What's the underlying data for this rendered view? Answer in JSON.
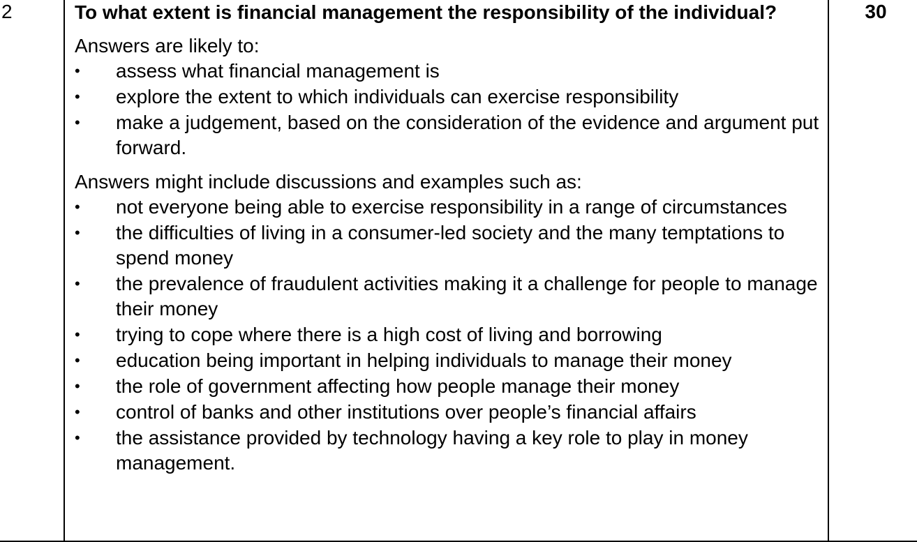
{
  "row": {
    "question_number": "2",
    "question": "To what extent is financial management the responsibility of the individual?",
    "marks": "30"
  },
  "section1": {
    "intro": "Answers are likely to:",
    "bullets": [
      "assess what financial management is",
      "explore the extent to which individuals can exercise responsibility",
      "make a judgement, based on the consideration of the evidence and argument put forward."
    ]
  },
  "section2": {
    "intro": "Answers might include discussions and examples such as:",
    "bullets": [
      "not everyone being able to exercise responsibility in a range of circumstances",
      "the difficulties of living in a consumer-led society and the many temptations to spend money",
      "the prevalence of fraudulent activities making it a challenge for people to manage their money",
      "trying to cope where there is a high cost of living and borrowing",
      "education being important in helping individuals to manage their money",
      "the role of government affecting how people manage their money",
      "control of banks and other institutions over people’s financial affairs",
      "the assistance provided by technology having a key role to play in money management."
    ]
  },
  "bullet_glyph": "•"
}
